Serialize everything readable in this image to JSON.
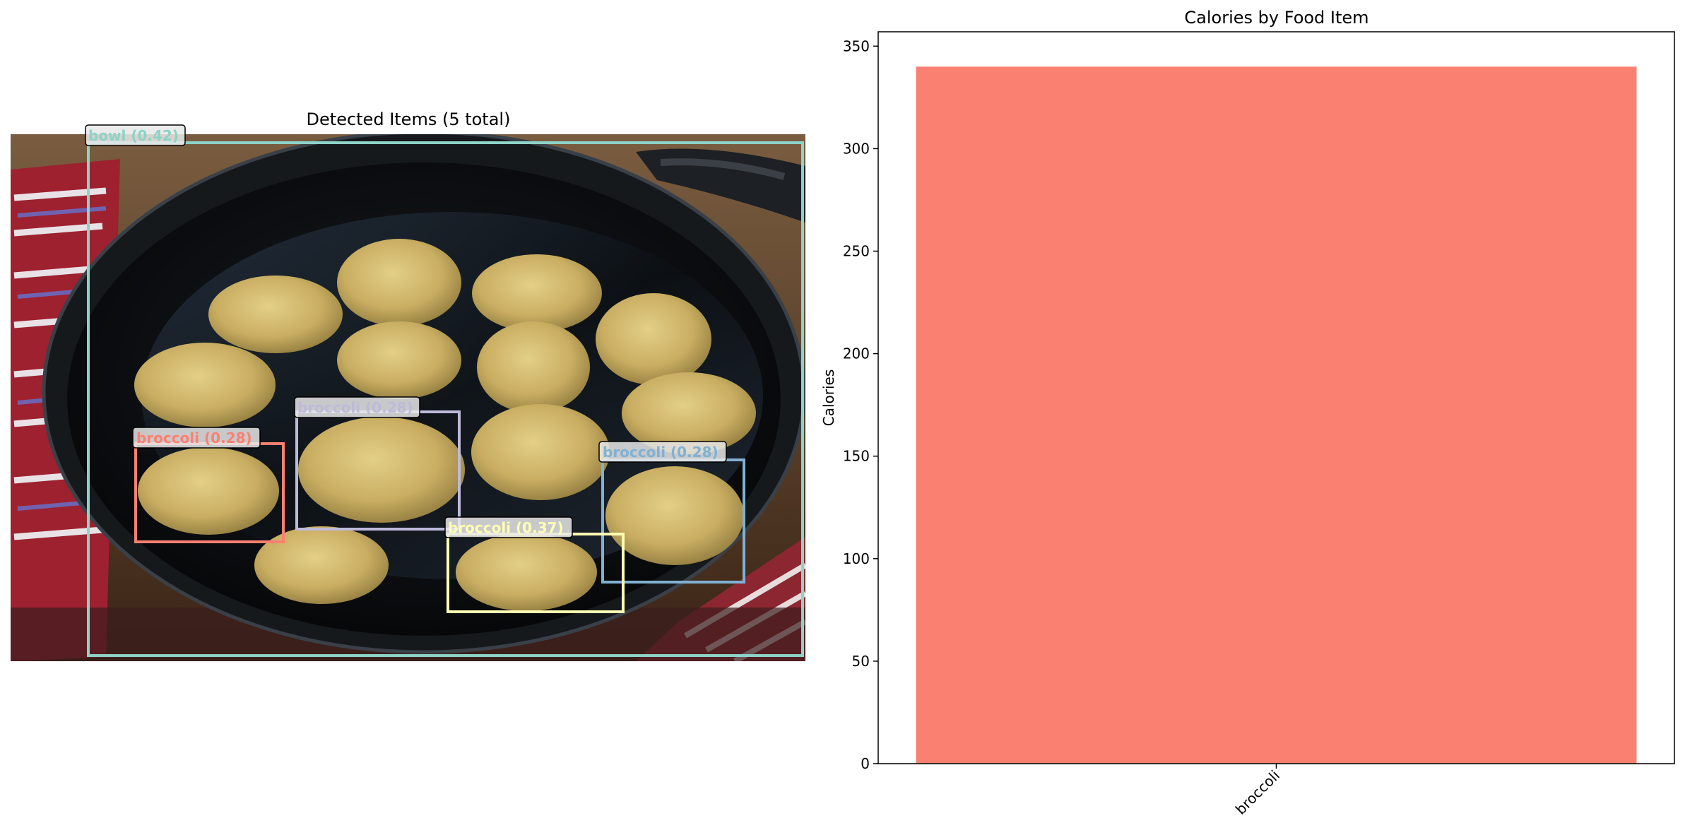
{
  "detection_panel": {
    "title": "Detected Items (5 total)",
    "detections": [
      {
        "label": "bowl (0.42)",
        "color": "#8dd3c7"
      },
      {
        "label": "broccoli (0.28)",
        "color": "#bebada"
      },
      {
        "label": "broccoli (0.28)",
        "color": "#fb8072"
      },
      {
        "label": "broccoli (0.28)",
        "color": "#80b1d3"
      },
      {
        "label": "broccoli (0.37)",
        "color": "#ffffb3"
      }
    ]
  },
  "chart_data": {
    "type": "bar",
    "title": "Calories by Food Item",
    "categories": [
      "broccoli"
    ],
    "values": [
      340
    ],
    "xlabel": "",
    "ylabel": "Calories",
    "ylim": [
      0,
      357
    ],
    "yticks": [
      "0",
      "50",
      "100",
      "150",
      "200",
      "250",
      "300",
      "350"
    ],
    "bar_color": "#fa8072",
    "grid": false,
    "legend": "none"
  }
}
